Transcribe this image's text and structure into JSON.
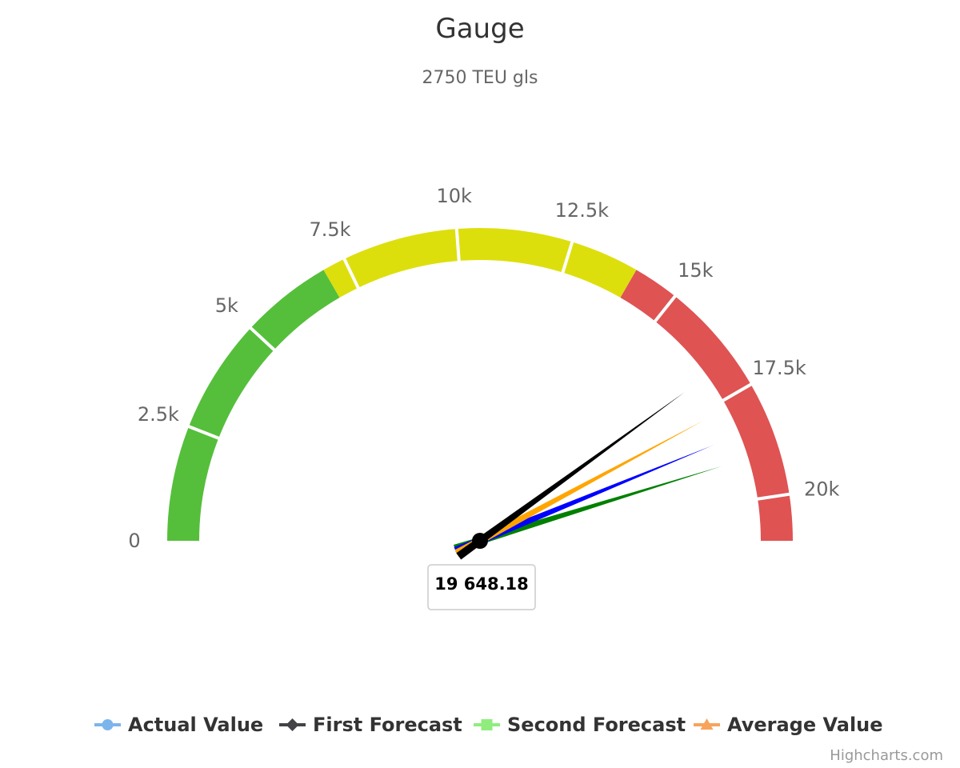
{
  "chart_data": {
    "type": "gauge",
    "title": "Gauge",
    "subtitle": "2750 TEU gls",
    "axis": {
      "min": 0,
      "max": 21000,
      "tick_labels": [
        {
          "value": 0,
          "label": "0"
        },
        {
          "value": 2500,
          "label": "2.5k"
        },
        {
          "value": 5000,
          "label": "5k"
        },
        {
          "value": 7500,
          "label": "7.5k"
        },
        {
          "value": 10000,
          "label": "10k"
        },
        {
          "value": 12500,
          "label": "12.5k"
        },
        {
          "value": 15000,
          "label": "15k"
        },
        {
          "value": 17500,
          "label": "17.5k"
        },
        {
          "value": 20000,
          "label": "20k"
        }
      ]
    },
    "bands": [
      {
        "from": 0,
        "to": 7000,
        "color": "#55BF3B"
      },
      {
        "from": 7000,
        "to": 14000,
        "color": "#DDDF0D"
      },
      {
        "from": 14000,
        "to": 21000,
        "color": "#DF5353"
      }
    ],
    "dials": [
      {
        "value": 19000,
        "color": "#008000"
      },
      {
        "value": 18400,
        "color": "#0000FF"
      },
      {
        "value": 17700,
        "color": "#FFA500"
      },
      {
        "value": 16800,
        "color": "#000000"
      }
    ],
    "data_label": "19 648.18",
    "legend": [
      {
        "name": "Actual Value",
        "color": "#7CB5EC",
        "marker": "circle"
      },
      {
        "name": "First Forecast",
        "color": "#434348",
        "marker": "diamond"
      },
      {
        "name": "Second Forecast",
        "color": "#90ED7D",
        "marker": "square"
      },
      {
        "name": "Average Value",
        "color": "#F7A35C",
        "marker": "triangle"
      }
    ],
    "credits": "Highcharts.com"
  }
}
